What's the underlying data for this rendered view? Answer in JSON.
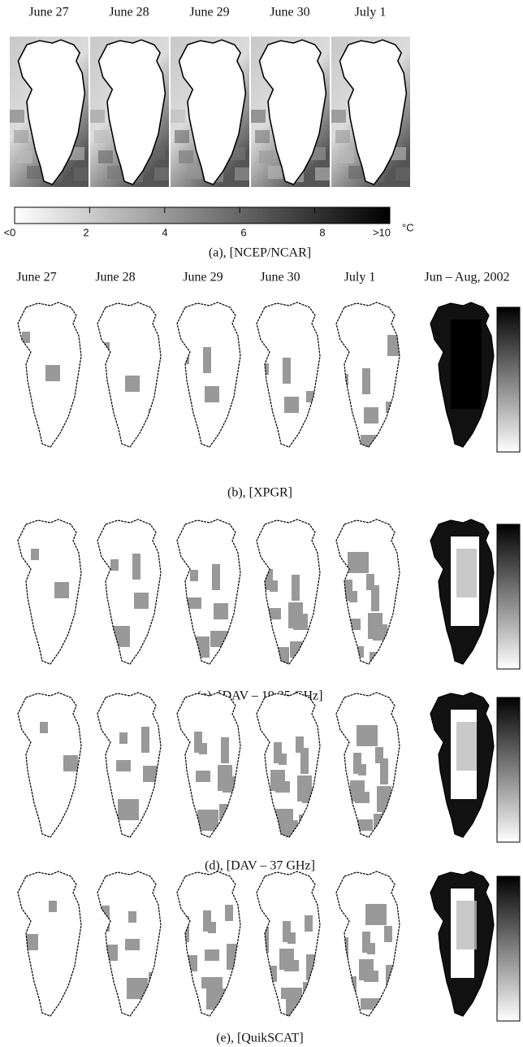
{
  "panel_a": {
    "dates": [
      "June 27",
      "June 28",
      "June 29",
      "June 30",
      "July 1"
    ],
    "colorbar": {
      "ticks": [
        "<0",
        "2",
        "4",
        "6",
        "8",
        ">10"
      ],
      "unit": "°C"
    },
    "caption": "(a), [NCEP/NCAR]"
  },
  "panels_b_e": {
    "dates": [
      "June 27",
      "June 28",
      "June 29",
      "June 30",
      "July 1",
      "Jun – Aug, 2002"
    ],
    "captions": [
      "(b), [XPGR]",
      "(c), [DAV – 19.35 GHz]",
      "(d), [DAV – 37 GHz]",
      "(e), [QuikSCAT]"
    ]
  }
}
